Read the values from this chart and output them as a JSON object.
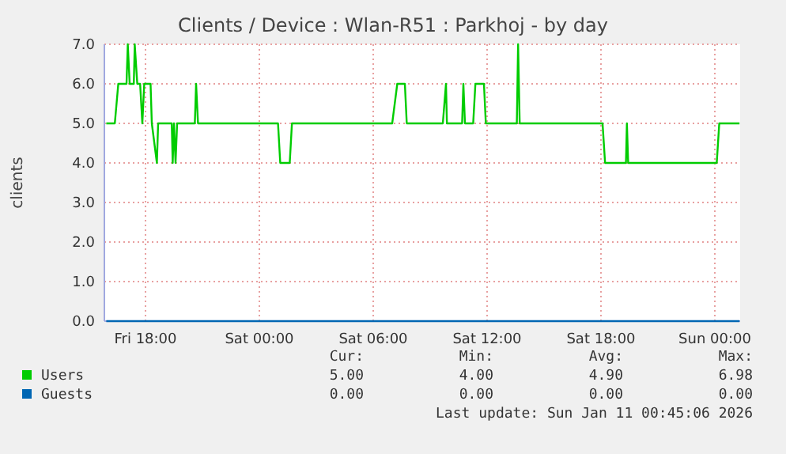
{
  "chart_data": {
    "type": "line",
    "title": "Clients / Device : Wlan-R51 : Parkhoj - by day",
    "ylabel": "clients",
    "xlim": [
      "2026-01-09T15:50",
      "2026-01-11T01:20"
    ],
    "ylim": [
      0,
      7
    ],
    "xticks": [
      {
        "value": "2026-01-09T18:00",
        "label": "Fri 18:00"
      },
      {
        "value": "2026-01-10T00:00",
        "label": "Sat 00:00"
      },
      {
        "value": "2026-01-10T06:00",
        "label": "Sat 06:00"
      },
      {
        "value": "2026-01-10T12:00",
        "label": "Sat 12:00"
      },
      {
        "value": "2026-01-10T18:00",
        "label": "Sat 18:00"
      },
      {
        "value": "2026-01-11T00:00",
        "label": "Sun 00:00"
      }
    ],
    "yticks": [
      {
        "value": 0,
        "label": "0.0"
      },
      {
        "value": 1,
        "label": "1.0"
      },
      {
        "value": 2,
        "label": "2.0"
      },
      {
        "value": 3,
        "label": "3.0"
      },
      {
        "value": 4,
        "label": "4.0"
      },
      {
        "value": 5,
        "label": "5.0"
      },
      {
        "value": 6,
        "label": "6.0"
      },
      {
        "value": 7,
        "label": "7.0"
      }
    ],
    "grid": true,
    "legend": "bottom left",
    "marker": "none",
    "line_style": "solid",
    "series": [
      {
        "name": "Users",
        "color": "#00cc00",
        "x": [
          "2026-01-09T15:56",
          "2026-01-09T16:23",
          "2026-01-09T16:34",
          "2026-01-09T17:00",
          "2026-01-09T17:04",
          "2026-01-09T17:10",
          "2026-01-09T17:23",
          "2026-01-09T17:26",
          "2026-01-09T17:34",
          "2026-01-09T17:43",
          "2026-01-09T17:50",
          "2026-01-09T17:56",
          "2026-01-09T18:16",
          "2026-01-09T18:20",
          "2026-01-09T18:36",
          "2026-01-09T18:40",
          "2026-01-09T19:23",
          "2026-01-09T19:26",
          "2026-01-09T19:30",
          "2026-01-09T19:35",
          "2026-01-09T19:40",
          "2026-01-09T20:36",
          "2026-01-09T20:40",
          "2026-01-09T20:46",
          "2026-01-10T00:59",
          "2026-01-10T01:06",
          "2026-01-10T01:36",
          "2026-01-10T01:43",
          "2026-01-10T07:00",
          "2026-01-10T07:16",
          "2026-01-10T07:40",
          "2026-01-10T07:46",
          "2026-01-10T09:40",
          "2026-01-10T09:50",
          "2026-01-10T09:53",
          "2026-01-10T10:41",
          "2026-01-10T10:45",
          "2026-01-10T10:50",
          "2026-01-10T11:16",
          "2026-01-10T11:23",
          "2026-01-10T11:50",
          "2026-01-10T11:56",
          "2026-01-10T13:34",
          "2026-01-10T13:38",
          "2026-01-10T13:43",
          "2026-01-10T18:05",
          "2026-01-10T18:13",
          "2026-01-10T19:19",
          "2026-01-10T19:22",
          "2026-01-10T19:26",
          "2026-01-11T00:06",
          "2026-01-11T00:14",
          "2026-01-11T01:18"
        ],
        "values": [
          5,
          5,
          6,
          6,
          7,
          6,
          6,
          7,
          6,
          6,
          5,
          6,
          6,
          5,
          4,
          5,
          5,
          4,
          5,
          4,
          5,
          5,
          6,
          5,
          5,
          4,
          4,
          5,
          5,
          6,
          6,
          5,
          5,
          6,
          5,
          5,
          6,
          5,
          5,
          6,
          6,
          5,
          5,
          7,
          5,
          5,
          4,
          4,
          5,
          4,
          4,
          5,
          5
        ]
      },
      {
        "name": "Guests",
        "color": "#0066b3",
        "x": [
          "2026-01-09T15:56",
          "2026-01-11T01:18"
        ],
        "values": [
          0,
          0
        ]
      }
    ],
    "annotations": [
      "Cur:",
      "Min:",
      "Avg:",
      "Max:",
      "5.00",
      "4.00",
      "4.90",
      "6.98",
      "0.00",
      "0.00",
      "0.00",
      "0.00",
      "Last update: Sun Jan 11 00:45:06 2026"
    ]
  }
}
